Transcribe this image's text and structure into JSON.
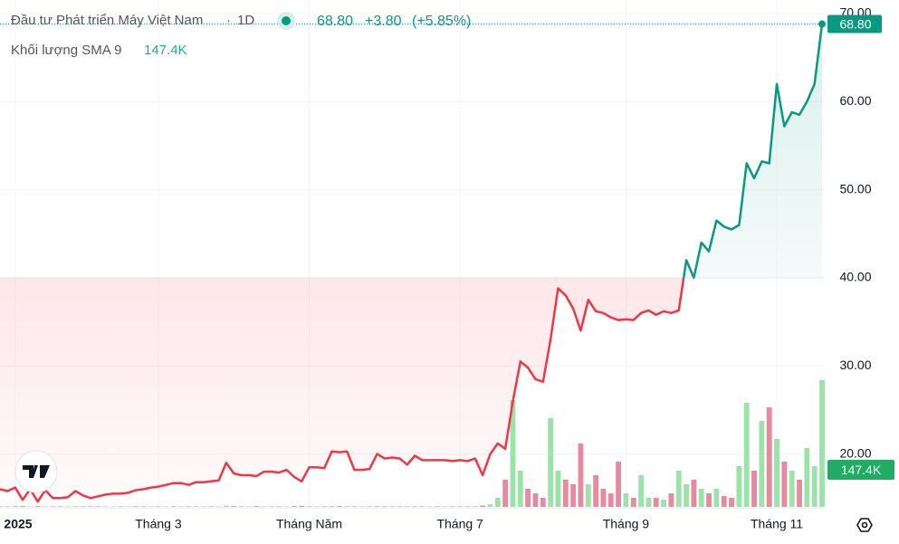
{
  "chart_data": {
    "type": "line",
    "title": "Đầu tư Phát triển Máy Việt Nam",
    "interval": "1D",
    "last": "68.80",
    "change": "+3.80",
    "change_pct": "(+5.85%)",
    "baseline": 40,
    "up_color": "#089981",
    "down_color": "#f23645",
    "categories": [
      null,
      null,
      "2025",
      null,
      null,
      null,
      null,
      null,
      null,
      null,
      null,
      null,
      null,
      null,
      null,
      null,
      null,
      null,
      null,
      null,
      null,
      "Tháng 3",
      null,
      null,
      null,
      null,
      null,
      null,
      null,
      null,
      null,
      null,
      null,
      null,
      null,
      null,
      null,
      null,
      null,
      null,
      null,
      "Tháng Năm",
      null,
      null,
      null,
      null,
      null,
      null,
      null,
      null,
      null,
      null,
      null,
      null,
      null,
      null,
      null,
      null,
      null,
      null,
      null,
      "Tháng 7",
      null,
      null,
      null,
      null,
      null,
      null,
      null,
      null,
      null,
      null,
      null,
      null,
      null,
      null,
      null,
      null,
      null,
      null,
      null,
      null,
      null,
      "Tháng 9",
      null,
      null,
      null,
      null,
      null,
      null,
      null,
      null,
      null,
      null,
      null,
      null,
      null,
      null,
      null,
      null,
      null,
      null,
      null,
      "Tháng 11",
      null,
      null,
      null,
      null,
      null,
      null
    ],
    "values": [
      16.0,
      15.8,
      16.2,
      14.8,
      16.0,
      14.6,
      15.9,
      15.0,
      15.0,
      15.1,
      15.8,
      15.3,
      15.0,
      15.2,
      15.4,
      15.5,
      15.5,
      15.6,
      15.9,
      16.0,
      16.2,
      16.3,
      16.5,
      16.7,
      16.7,
      16.5,
      16.8,
      16.8,
      16.9,
      17.0,
      19.0,
      17.8,
      17.6,
      17.6,
      17.5,
      18.0,
      18.0,
      17.9,
      18.2,
      17.4,
      16.9,
      18.5,
      18.5,
      18.4,
      20.3,
      20.2,
      20.3,
      18.2,
      18.2,
      18.3,
      20.0,
      19.5,
      19.6,
      19.5,
      18.8,
      19.8,
      19.3,
      19.3,
      19.3,
      19.3,
      19.2,
      19.3,
      19.2,
      19.5,
      17.6,
      20.0,
      21.2,
      20.6,
      26.0,
      30.5,
      29.8,
      28.5,
      28.2,
      33.0,
      38.8,
      38.0,
      36.5,
      34.0,
      37.5,
      36.2,
      36.0,
      35.5,
      35.2,
      35.3,
      35.2,
      36.0,
      36.3,
      35.8,
      36.2,
      36.0,
      36.3,
      42.0,
      40.0,
      44.0,
      43.0,
      46.5,
      45.8,
      45.5,
      46.0,
      53.0,
      51.3,
      53.2,
      53.0,
      62.0,
      57.2,
      58.8,
      58.5,
      60.0,
      62.0,
      68.8
    ],
    "ylim": [
      14,
      70.5
    ],
    "yticks": [
      {
        "value": 20,
        "label": "20.00"
      },
      {
        "value": 30,
        "label": "30.00"
      },
      {
        "value": 40,
        "label": "40.00"
      },
      {
        "value": 50,
        "label": "50.00"
      },
      {
        "value": 60,
        "label": "60.00"
      },
      {
        "value": 70,
        "label": "70.00"
      }
    ],
    "grid": true,
    "volume": {
      "name": "Khối lượng SMA 9",
      "sma": 147.4,
      "sma_label": "147.4K",
      "up_color": "#9be3a9",
      "down_color": "#e7899f",
      "ylim": [
        0,
        720
      ],
      "values": [
        3,
        2,
        4,
        3,
        2,
        3,
        2,
        2,
        3,
        2,
        3,
        2,
        2,
        3,
        2,
        2,
        3,
        2,
        4,
        3,
        2,
        3,
        2,
        3,
        2,
        2,
        3,
        2,
        3,
        2,
        5,
        3,
        2,
        2,
        3,
        2,
        3,
        2,
        2,
        3,
        4,
        3,
        2,
        2,
        4,
        3,
        3,
        2,
        2,
        3,
        4,
        2,
        3,
        2,
        2,
        3,
        2,
        2,
        3,
        2,
        2,
        3,
        2,
        3,
        5,
        10,
        36,
        108,
        425,
        144,
        72,
        54,
        36,
        353,
        144,
        108,
        90,
        252,
        90,
        126,
        72,
        54,
        180,
        54,
        36,
        126,
        36,
        36,
        29,
        54,
        144,
        90,
        108,
        72,
        54,
        72,
        43,
        36,
        162,
        414,
        144,
        342,
        396,
        270,
        180,
        144,
        108,
        234,
        162,
        504
      ]
    }
  }
}
